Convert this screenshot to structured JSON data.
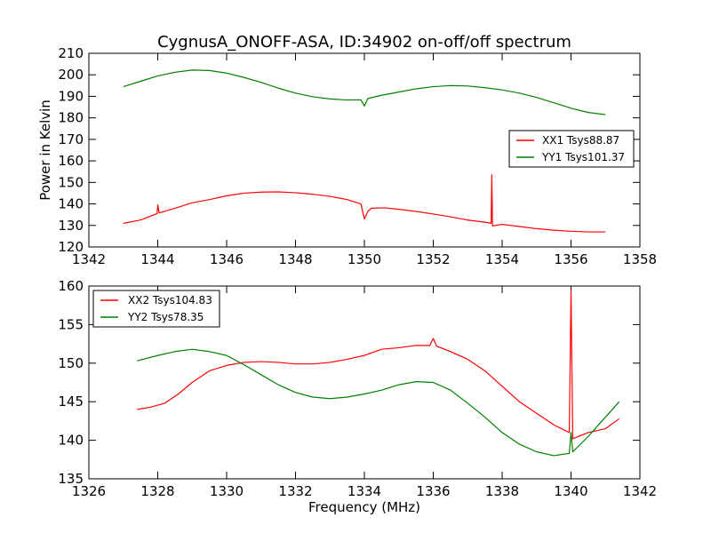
{
  "chart_data": [
    {
      "type": "line",
      "title": "CygnusA_ONOFF-ASA, ID:34902 on-off/off spectrum",
      "ylabel": "Power in Kelvin",
      "xlabel": "",
      "xlim": [
        1342,
        1358
      ],
      "ylim": [
        120,
        210
      ],
      "xticks": [
        "1342",
        "1344",
        "1346",
        "1348",
        "1350",
        "1352",
        "1354",
        "1356",
        "1358"
      ],
      "yticks": [
        "120",
        "130",
        "140",
        "150",
        "160",
        "170",
        "180",
        "190",
        "200",
        "210"
      ],
      "legend_position": "center-right",
      "series": [
        {
          "name": "XX1 Tsys88.87",
          "color": "#ff0000",
          "points": [
            [
              1343.0,
              131.0
            ],
            [
              1343.5,
              132.5
            ],
            [
              1343.98,
              135.5
            ],
            [
              1344.0,
              139.5
            ],
            [
              1344.04,
              135.8
            ],
            [
              1344.5,
              138.0
            ],
            [
              1345.0,
              140.5
            ],
            [
              1345.5,
              142.0
            ],
            [
              1346.0,
              143.8
            ],
            [
              1346.5,
              145.0
            ],
            [
              1347.0,
              145.5
            ],
            [
              1347.5,
              145.6
            ],
            [
              1348.0,
              145.2
            ],
            [
              1348.5,
              144.5
            ],
            [
              1349.0,
              143.5
            ],
            [
              1349.5,
              142.0
            ],
            [
              1349.9,
              140.0
            ],
            [
              1350.0,
              133.0
            ],
            [
              1350.1,
              136.5
            ],
            [
              1350.2,
              138.0
            ],
            [
              1350.6,
              138.2
            ],
            [
              1351.0,
              137.5
            ],
            [
              1351.5,
              136.5
            ],
            [
              1352.0,
              135.3
            ],
            [
              1352.5,
              134.0
            ],
            [
              1353.0,
              132.5
            ],
            [
              1353.5,
              131.5
            ],
            [
              1353.68,
              131.0
            ],
            [
              1353.7,
              153.5
            ],
            [
              1353.72,
              129.8
            ],
            [
              1354.0,
              130.5
            ],
            [
              1354.5,
              129.5
            ],
            [
              1355.0,
              128.5
            ],
            [
              1355.5,
              127.8
            ],
            [
              1356.0,
              127.3
            ],
            [
              1356.5,
              127.0
            ],
            [
              1357.0,
              127.0
            ]
          ]
        },
        {
          "name": "YY1 Tsys101.37",
          "color": "#008000",
          "points": [
            [
              1343.0,
              194.5
            ],
            [
              1343.5,
              197.0
            ],
            [
              1344.0,
              199.5
            ],
            [
              1344.5,
              201.2
            ],
            [
              1345.0,
              202.2
            ],
            [
              1345.5,
              202.0
            ],
            [
              1346.0,
              200.8
            ],
            [
              1346.5,
              198.8
            ],
            [
              1347.0,
              196.5
            ],
            [
              1347.5,
              193.8
            ],
            [
              1348.0,
              191.5
            ],
            [
              1348.5,
              189.8
            ],
            [
              1349.0,
              188.8
            ],
            [
              1349.5,
              188.3
            ],
            [
              1349.9,
              188.4
            ],
            [
              1350.0,
              185.5
            ],
            [
              1350.1,
              189.0
            ],
            [
              1350.5,
              190.5
            ],
            [
              1351.0,
              192.0
            ],
            [
              1351.5,
              193.5
            ],
            [
              1352.0,
              194.5
            ],
            [
              1352.5,
              195.0
            ],
            [
              1353.0,
              194.8
            ],
            [
              1353.5,
              194.0
            ],
            [
              1354.0,
              193.0
            ],
            [
              1354.5,
              191.5
            ],
            [
              1355.0,
              189.5
            ],
            [
              1355.5,
              187.0
            ],
            [
              1356.0,
              184.5
            ],
            [
              1356.5,
              182.5
            ],
            [
              1357.0,
              181.5
            ]
          ]
        }
      ]
    },
    {
      "type": "line",
      "title": "",
      "ylabel": "",
      "xlabel": "Frequency (MHz)",
      "xlim": [
        1326,
        1342
      ],
      "ylim": [
        135,
        160
      ],
      "xticks": [
        "1326",
        "1328",
        "1330",
        "1332",
        "1334",
        "1336",
        "1338",
        "1340",
        "1342"
      ],
      "yticks": [
        "135",
        "140",
        "145",
        "150",
        "155",
        "160"
      ],
      "legend_position": "upper-left",
      "series": [
        {
          "name": "XX2 Tsys104.83",
          "color": "#ff0000",
          "points": [
            [
              1327.4,
              144.0
            ],
            [
              1327.8,
              144.3
            ],
            [
              1328.2,
              144.8
            ],
            [
              1328.6,
              146.0
            ],
            [
              1329.0,
              147.5
            ],
            [
              1329.5,
              149.0
            ],
            [
              1330.0,
              149.7
            ],
            [
              1330.5,
              150.1
            ],
            [
              1331.0,
              150.2
            ],
            [
              1331.5,
              150.1
            ],
            [
              1332.0,
              149.9
            ],
            [
              1332.5,
              149.9
            ],
            [
              1333.0,
              150.1
            ],
            [
              1333.5,
              150.5
            ],
            [
              1334.0,
              151.0
            ],
            [
              1334.5,
              151.8
            ],
            [
              1335.0,
              152.0
            ],
            [
              1335.5,
              152.3
            ],
            [
              1335.9,
              152.3
            ],
            [
              1336.0,
              153.2
            ],
            [
              1336.1,
              152.2
            ],
            [
              1336.5,
              151.5
            ],
            [
              1337.0,
              150.5
            ],
            [
              1337.5,
              149.0
            ],
            [
              1338.0,
              147.0
            ],
            [
              1338.5,
              145.0
            ],
            [
              1339.0,
              143.5
            ],
            [
              1339.5,
              142.0
            ],
            [
              1339.95,
              141.0
            ],
            [
              1340.0,
              159.5
            ],
            [
              1340.05,
              140.2
            ],
            [
              1340.5,
              141.0
            ],
            [
              1341.0,
              141.5
            ],
            [
              1341.4,
              142.8
            ]
          ]
        },
        {
          "name": "YY2 Tsys78.35",
          "color": "#008000",
          "points": [
            [
              1327.4,
              150.3
            ],
            [
              1328.0,
              151.0
            ],
            [
              1328.5,
              151.5
            ],
            [
              1329.0,
              151.8
            ],
            [
              1329.5,
              151.5
            ],
            [
              1330.0,
              151.0
            ],
            [
              1330.5,
              149.8
            ],
            [
              1331.0,
              148.5
            ],
            [
              1331.5,
              147.2
            ],
            [
              1332.0,
              146.2
            ],
            [
              1332.5,
              145.6
            ],
            [
              1333.0,
              145.4
            ],
            [
              1333.5,
              145.6
            ],
            [
              1334.0,
              146.0
            ],
            [
              1334.5,
              146.5
            ],
            [
              1335.0,
              147.2
            ],
            [
              1335.5,
              147.6
            ],
            [
              1336.0,
              147.5
            ],
            [
              1336.5,
              146.5
            ],
            [
              1337.0,
              144.8
            ],
            [
              1337.5,
              143.0
            ],
            [
              1338.0,
              141.0
            ],
            [
              1338.5,
              139.5
            ],
            [
              1339.0,
              138.5
            ],
            [
              1339.5,
              138.0
            ],
            [
              1339.95,
              138.3
            ],
            [
              1340.0,
              141.0
            ],
            [
              1340.05,
              138.5
            ],
            [
              1340.5,
              140.5
            ],
            [
              1341.0,
              143.0
            ],
            [
              1341.4,
              145.0
            ]
          ]
        }
      ]
    }
  ]
}
